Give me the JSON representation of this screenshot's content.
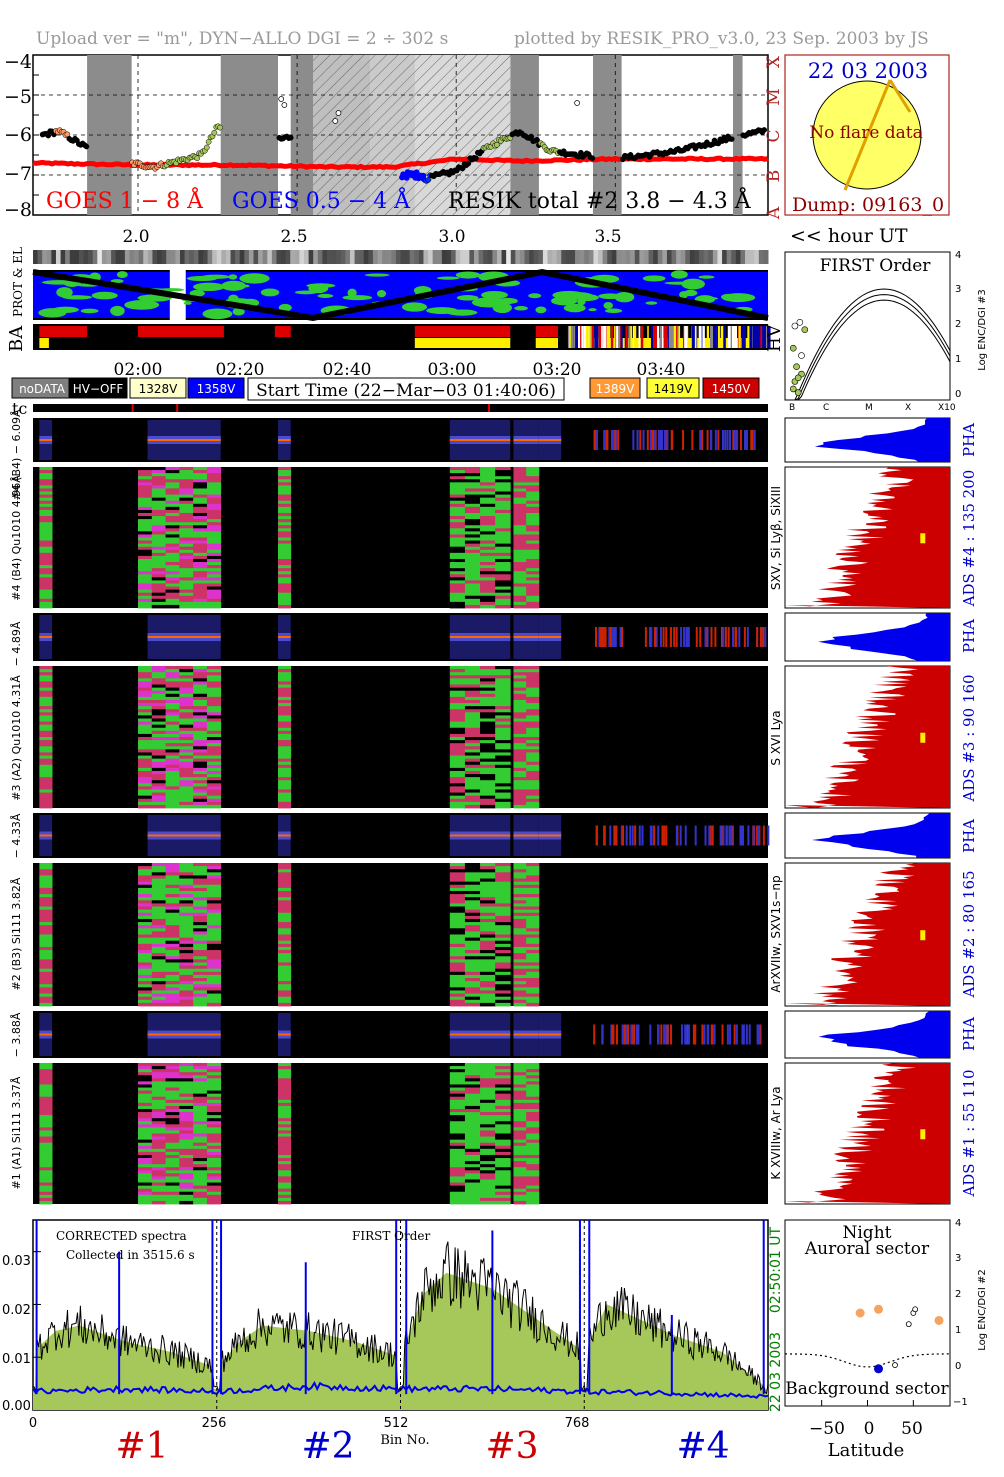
{
  "header": {
    "upload": "Upload ver = \"m\", DYN−ALLO DGI =   2 ÷ 302 s",
    "plotted": "plotted by RESIK_PRO_v3.0, 23 Sep. 2003 by JS"
  },
  "goes_panel": {
    "y_ticks": [
      "−4",
      "−5",
      "−6",
      "−7",
      "−8"
    ],
    "class_labels": [
      "X",
      "M",
      "C",
      "B",
      "A"
    ],
    "legend_goes18": "GOES 1 − 8 Å",
    "legend_goes054": "GOES 0.5 − 4 Å",
    "legend_resik": "RESIK total #2  3.8 − 4.3 Å",
    "colors": {
      "goes18": "#ff0000",
      "goes054": "#0000ff",
      "resik": "#000000"
    }
  },
  "sun_panel": {
    "date": "22 03 2003",
    "no_flare": "No flare data",
    "dump": "Dump: 09163_0"
  },
  "hour_axis": {
    "ticks": [
      "2.0",
      "2.5",
      "3.0",
      "3.5"
    ],
    "label": "<< hour UT"
  },
  "strip_labels": {
    "prot_el": "PROT & EL",
    "ba": "BA",
    "hv": "HV"
  },
  "first_order": {
    "title": "FIRST Order",
    "x_ticks": [
      "B",
      "C",
      "M",
      "X",
      "X10"
    ],
    "y_ticks": [
      "4",
      "3",
      "2",
      "1",
      "0"
    ],
    "ylabel": "Log ENC/DGI #3"
  },
  "time_axis": {
    "ticks": [
      "02:00",
      "02:20",
      "02:40",
      "03:00",
      "03:20",
      "03:40"
    ]
  },
  "legend_boxes": [
    {
      "label": "noDATA",
      "bg": "#7f7f7f",
      "fg": "#ffffff"
    },
    {
      "label": "HV−OFF",
      "bg": "#000000",
      "fg": "#ffffff"
    },
    {
      "label": "1328V",
      "bg": "#ffffcc",
      "fg": "#000000"
    },
    {
      "label": "1358V",
      "bg": "#0000ff",
      "fg": "#ffffff"
    },
    {
      "label": "1389V",
      "bg": "#ff9933",
      "fg": "#ffffff"
    },
    {
      "label": "1419V",
      "bg": "#ffff33",
      "fg": "#000000"
    },
    {
      "label": "1450V",
      "bg": "#cc0000",
      "fg": "#ffffff"
    }
  ],
  "start_time": "Start Time (22−Mar−03 01:40:06)",
  "tc_label": "tc",
  "channels": [
    {
      "pha_label": "#4 (B4) − 6.09Å",
      "spec_label": "#4 (B4) Qu1010 4.96Å",
      "side_label": "SXV, Si Lyβ, SiXIII",
      "ads_label": "ADS #4 :  135 200"
    },
    {
      "pha_label": "− 4.89Å",
      "spec_label": "#3 (A2) Qu1010 4.31Å",
      "side_label": "S XVI Lya",
      "ads_label": "ADS #3 :  90 160"
    },
    {
      "pha_label": "− 4.33Å",
      "spec_label": "#2 (B3) Si111 3.82Å",
      "side_label": "ArXVIIw, SXV1s−np",
      "ads_label": "ADS #2 :  80 165"
    },
    {
      "pha_label": "− 3.88Å",
      "spec_label": "#1 (A1) Si111 3.37Å",
      "side_label": "K XVIIIw, Ar Lya",
      "ads_label": "ADS #1 :  55 110"
    }
  ],
  "pha_right_label": "PHA",
  "spectrum": {
    "corrected": "CORRECTED spectra",
    "collected": "Collected in  3515.6 s",
    "first_order": "FIRST Order",
    "y_ticks": [
      "0.03",
      "0.02",
      "0.01",
      "0.00"
    ],
    "x_ticks": [
      "0",
      "256",
      "512",
      "768"
    ],
    "xlabel": "Bin No.",
    "ut_time": "02:50:01 UT",
    "ut_date": "22 03 2003",
    "channel_labels": [
      {
        "label": "#1",
        "color": "#cc0000"
      },
      {
        "label": "#2",
        "color": "#0000cc"
      },
      {
        "label": "#3",
        "color": "#cc0000"
      },
      {
        "label": "#4",
        "color": "#0000cc"
      }
    ]
  },
  "latitude_panel": {
    "night": "Night",
    "auroral": "Auroral sector",
    "background": "Background sector",
    "xlabel": "Latitude",
    "x_ticks": [
      "−50",
      "0",
      "50"
    ],
    "y_ticks": [
      "4",
      "3",
      "2",
      "1",
      "0",
      "−1"
    ],
    "ylabel": "Log ENC/DGI #2"
  },
  "chart_data": [
    {
      "type": "line",
      "title": "",
      "xlabel": "hour UT",
      "ylabel": "",
      "xlim": [
        1.67,
        3.98
      ],
      "ylim": [
        -8,
        -4
      ],
      "series": [
        {
          "name": "GOES 1 − 8 Å",
          "x": [
            1.67,
            2.0,
            2.3,
            2.6,
            2.8,
            3.0,
            3.2,
            3.5,
            3.98
          ],
          "y": [
            -6.7,
            -6.75,
            -6.75,
            -6.8,
            -6.8,
            -6.6,
            -6.65,
            -6.6,
            -6.6
          ]
        },
        {
          "name": "GOES 0.5 − 4 Å",
          "x": [
            2.83,
            2.88
          ],
          "y": [
            -7.0,
            -6.95
          ]
        },
        {
          "name": "RESIK total #2  3.8 − 4.3 Å",
          "x": [
            1.7,
            1.75,
            1.9,
            2.05,
            2.2,
            2.25,
            2.45,
            2.55,
            2.9,
            3.0,
            3.1,
            3.2,
            3.3,
            3.5,
            3.7,
            3.9,
            3.97
          ],
          "y": [
            -6.0,
            -5.9,
            -6.6,
            -6.8,
            -6.5,
            -5.8,
            -6.1,
            -5.9,
            -7.1,
            -6.9,
            -6.3,
            -5.9,
            -6.4,
            -6.6,
            -6.4,
            -6.0,
            -5.9
          ]
        }
      ]
    },
    {
      "type": "line",
      "title": "CORRECTED spectra",
      "xlabel": "Bin No.",
      "ylabel": "",
      "xlim": [
        0,
        1024
      ],
      "ylim": [
        0,
        0.036
      ],
      "series": [
        {
          "name": "",
          "x": [
            0,
            32,
            64,
            128,
            192,
            256,
            288,
            320,
            384,
            448,
            512,
            544,
            576,
            640,
            704,
            768,
            800,
            832,
            896,
            960,
            1024
          ],
          "y": [
            0.011,
            0.015,
            0.016,
            0.013,
            0.011,
            0.008,
            0.013,
            0.016,
            0.015,
            0.013,
            0.01,
            0.022,
            0.026,
            0.023,
            0.017,
            0.011,
            0.02,
            0.018,
            0.014,
            0.011,
            0.004
          ]
        },
        {
          "name": "",
          "x": [
            0,
            128,
            256,
            384,
            512,
            640,
            768,
            896,
            1024
          ],
          "y": [
            0.0035,
            0.004,
            0.0035,
            0.0045,
            0.004,
            0.004,
            0.0035,
            0.0032,
            0.0025
          ]
        }
      ]
    },
    {
      "type": "scatter",
      "title": "",
      "xlabel": "Latitude",
      "ylabel": "Log ENC/DGI #2",
      "xlim": [
        -90,
        90
      ],
      "ylim": [
        -1,
        4
      ],
      "series": [
        {
          "name": "",
          "x": [
            -8,
            12,
            78
          ],
          "y": [
            1.5,
            1.6,
            1.3
          ]
        },
        {
          "name": "",
          "x": [
            12
          ],
          "y": [
            0.0
          ]
        },
        {
          "name": "",
          "x": [
            45,
            50,
            52,
            30
          ],
          "y": [
            1.2,
            1.5,
            1.6,
            0.1
          ]
        }
      ]
    }
  ]
}
